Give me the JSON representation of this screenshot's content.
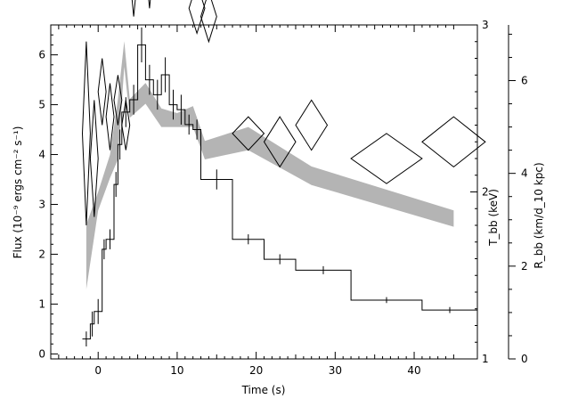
{
  "chart_data": {
    "type": "line",
    "title": "",
    "xlabel": "Time (s)",
    "ylabel_left": "Flux (10⁻⁹ ergs cm⁻² s⁻¹)",
    "ylabel_right_1": "T_bb (keV)",
    "ylabel_right_2": "R_bb (km/d_10 kpc)",
    "xlim": [
      -6,
      48
    ],
    "ylim_left": [
      -0.1,
      6.6
    ],
    "ylim_right_1": [
      1,
      3
    ],
    "ylim_right_2": [
      0,
      7.2
    ],
    "x_ticks": [
      0,
      10,
      20,
      30,
      40
    ],
    "y_ticks_left": [
      0,
      1,
      2,
      3,
      4,
      5,
      6
    ],
    "y_ticks_right_1": [
      1,
      2,
      3
    ],
    "y_ticks_right_2": [
      0,
      2,
      4,
      6
    ],
    "flux": [
      {
        "x0": -2.0,
        "x1": -1.0,
        "y": 0.3,
        "err": 0.15
      },
      {
        "x0": -1.0,
        "x1": -0.5,
        "y": 0.6,
        "err": 0.25
      },
      {
        "x0": -0.5,
        "x1": 0.5,
        "y": 0.85,
        "err": 0.25
      },
      {
        "x0": 0.5,
        "x1": 1.0,
        "y": 2.1,
        "err": 0.2
      },
      {
        "x0": 1.0,
        "x1": 2.0,
        "y": 2.3,
        "err": 0.2
      },
      {
        "x0": 2.0,
        "x1": 2.5,
        "y": 3.4,
        "err": 0.25
      },
      {
        "x0": 2.5,
        "x1": 3.0,
        "y": 4.2,
        "err": 0.3
      },
      {
        "x0": 3.0,
        "x1": 4.0,
        "y": 4.85,
        "err": 0.3
      },
      {
        "x0": 4.0,
        "x1": 5.0,
        "y": 5.1,
        "err": 0.3
      },
      {
        "x0": 5.0,
        "x1": 6.0,
        "y": 6.2,
        "err": 0.35
      },
      {
        "x0": 6.0,
        "x1": 7.0,
        "y": 5.5,
        "err": 0.3
      },
      {
        "x0": 7.0,
        "x1": 8.0,
        "y": 5.2,
        "err": 0.3
      },
      {
        "x0": 8.0,
        "x1": 9.0,
        "y": 5.6,
        "err": 0.35
      },
      {
        "x0": 9.0,
        "x1": 10.0,
        "y": 5.0,
        "err": 0.3
      },
      {
        "x0": 10.0,
        "x1": 11.0,
        "y": 4.9,
        "err": 0.3
      },
      {
        "x0": 11.0,
        "x1": 12.0,
        "y": 4.6,
        "err": 0.2
      },
      {
        "x0": 12.0,
        "x1": 13.0,
        "y": 4.5,
        "err": 0.2
      },
      {
        "x0": 13.0,
        "x1": 17.0,
        "y": 3.5,
        "err": 0.2
      },
      {
        "x0": 17.0,
        "x1": 21.0,
        "y": 2.3,
        "err": 0.1
      },
      {
        "x0": 21.0,
        "x1": 25.0,
        "y": 1.9,
        "err": 0.1
      },
      {
        "x0": 25.0,
        "x1": 32.0,
        "y": 1.68,
        "err": 0.08
      },
      {
        "x0": 32.0,
        "x1": 41.0,
        "y": 1.08,
        "err": 0.06
      },
      {
        "x0": 41.0,
        "x1": 48.0,
        "y": 0.88,
        "err": 0.06
      }
    ],
    "temperature": [
      {
        "x": -1.5,
        "dx": 0.5,
        "y": 2.35,
        "dy": 0.55
      },
      {
        "x": -0.5,
        "dx": 0.5,
        "y": 2.2,
        "dy": 0.35
      },
      {
        "x": 0.5,
        "dx": 0.5,
        "y": 2.6,
        "dy": 0.2
      },
      {
        "x": 1.5,
        "dx": 0.5,
        "y": 2.45,
        "dy": 0.2
      },
      {
        "x": 2.5,
        "dx": 0.5,
        "y": 2.55,
        "dy": 0.15
      },
      {
        "x": 3.5,
        "dx": 0.5,
        "y": 2.4,
        "dy": 0.15
      },
      {
        "x": 4.5,
        "dx": 0.5,
        "y": 3.3,
        "dy": 0.25
      },
      {
        "x": 5.5,
        "dx": 0.5,
        "y": 3.45,
        "dy": 0.25
      },
      {
        "x": 6.5,
        "dx": 0.5,
        "y": 3.35,
        "dy": 0.25
      },
      {
        "x": 7.5,
        "dx": 0.5,
        "y": 3.4,
        "dy": 0.25
      },
      {
        "x": 8.5,
        "dx": 0.5,
        "y": 3.45,
        "dy": 0.3
      },
      {
        "x": 10.5,
        "dx": 1.0,
        "y": 3.35,
        "dy": 0.15
      },
      {
        "x": 12.5,
        "dx": 1.0,
        "y": 3.1,
        "dy": 0.15
      },
      {
        "x": 14.0,
        "dx": 1.0,
        "y": 3.05,
        "dy": 0.15
      },
      {
        "x": 19.0,
        "dx": 2.0,
        "y": 2.35,
        "dy": 0.1
      },
      {
        "x": 23.0,
        "dx": 2.0,
        "y": 2.3,
        "dy": 0.15
      },
      {
        "x": 27.0,
        "dx": 2.0,
        "y": 2.4,
        "dy": 0.15
      },
      {
        "x": 36.5,
        "dx": 4.5,
        "y": 2.2,
        "dy": 0.15
      },
      {
        "x": 45.0,
        "dx": 4.0,
        "y": 2.3,
        "dy": 0.15
      }
    ],
    "radius_band": [
      {
        "x": -1.5,
        "lo": 1.5,
        "hi": 2.9
      },
      {
        "x": 0.0,
        "lo": 3.2,
        "hi": 3.6
      },
      {
        "x": 1.5,
        "lo": 3.9,
        "hi": 4.4
      },
      {
        "x": 2.5,
        "lo": 4.3,
        "hi": 5.6
      },
      {
        "x": 3.3,
        "lo": 6.3,
        "hi": 6.85
      },
      {
        "x": 4.0,
        "lo": 5.2,
        "hi": 5.6
      },
      {
        "x": 6.0,
        "lo": 5.5,
        "hi": 5.95
      },
      {
        "x": 8.0,
        "lo": 5.0,
        "hi": 5.4
      },
      {
        "x": 10.0,
        "lo": 5.0,
        "hi": 5.3
      },
      {
        "x": 12.0,
        "lo": 5.0,
        "hi": 5.45
      },
      {
        "x": 13.5,
        "lo": 4.3,
        "hi": 4.7
      },
      {
        "x": 19.0,
        "lo": 4.5,
        "hi": 5.0
      },
      {
        "x": 27.0,
        "lo": 3.75,
        "hi": 4.15
      },
      {
        "x": 45.0,
        "lo": 2.85,
        "hi": 3.2
      }
    ],
    "colors": {
      "axis": "#000000",
      "band": "#b4b4b4",
      "flux": "#000000",
      "temperature": "#000000"
    }
  }
}
